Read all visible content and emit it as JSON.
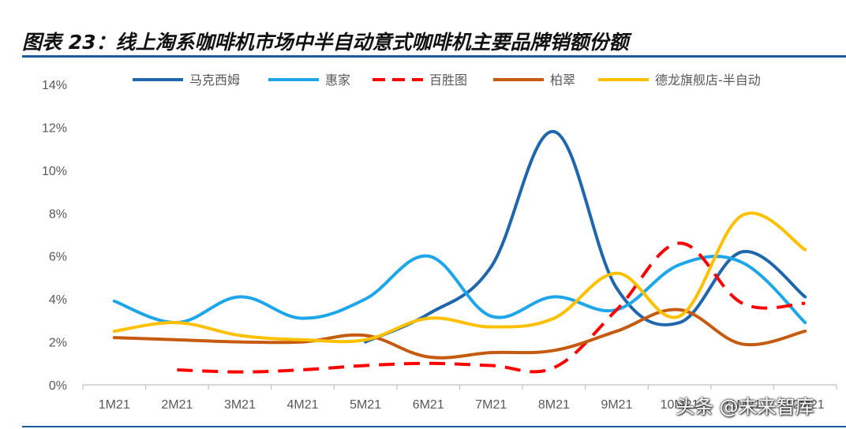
{
  "header": {
    "title": "图表 23：线上淘系咖啡机市场中半自动意式咖啡机主要品牌销额份额"
  },
  "watermark": "头条 @未来智库",
  "chart_data": {
    "type": "line",
    "categories": [
      "1M21",
      "2M21",
      "3M21",
      "4M21",
      "5M21",
      "6M21",
      "7M21",
      "8M21",
      "9M21",
      "10M21",
      "11M21",
      "12M21"
    ],
    "y_ticks": [
      "0%",
      "2%",
      "4%",
      "6%",
      "8%",
      "10%",
      "12%",
      "14%"
    ],
    "ylim": [
      0,
      14
    ],
    "y_unit": "%",
    "legend_position": "top",
    "grid": false,
    "series": [
      {
        "name": "马克西姆",
        "color": "#1f66ad",
        "dash": "solid",
        "values": [
          null,
          null,
          null,
          null,
          2.0,
          3.3,
          5.5,
          11.8,
          4.5,
          2.9,
          6.2,
          4.1
        ]
      },
      {
        "name": "惠家",
        "color": "#1ea6e8",
        "dash": "solid",
        "values": [
          3.9,
          2.9,
          4.1,
          3.1,
          4.0,
          6.0,
          3.2,
          4.1,
          3.5,
          5.6,
          5.7,
          2.9
        ]
      },
      {
        "name": "百胜图",
        "color": "#ff0000",
        "dash": "dashed",
        "values": [
          null,
          0.7,
          0.6,
          0.7,
          0.9,
          1.0,
          0.9,
          0.8,
          3.5,
          6.6,
          3.8,
          3.8
        ]
      },
      {
        "name": "柏翠",
        "color": "#c55a11",
        "dash": "solid",
        "values": [
          2.2,
          2.1,
          2.0,
          2.0,
          2.3,
          1.3,
          1.5,
          1.6,
          2.5,
          3.5,
          1.9,
          2.5
        ]
      },
      {
        "name": "德龙旗舰店-半自动",
        "color": "#ffc000",
        "dash": "solid",
        "values": [
          2.5,
          2.9,
          2.3,
          2.1,
          2.1,
          3.1,
          2.7,
          3.1,
          5.2,
          3.2,
          7.9,
          6.3
        ]
      }
    ]
  }
}
